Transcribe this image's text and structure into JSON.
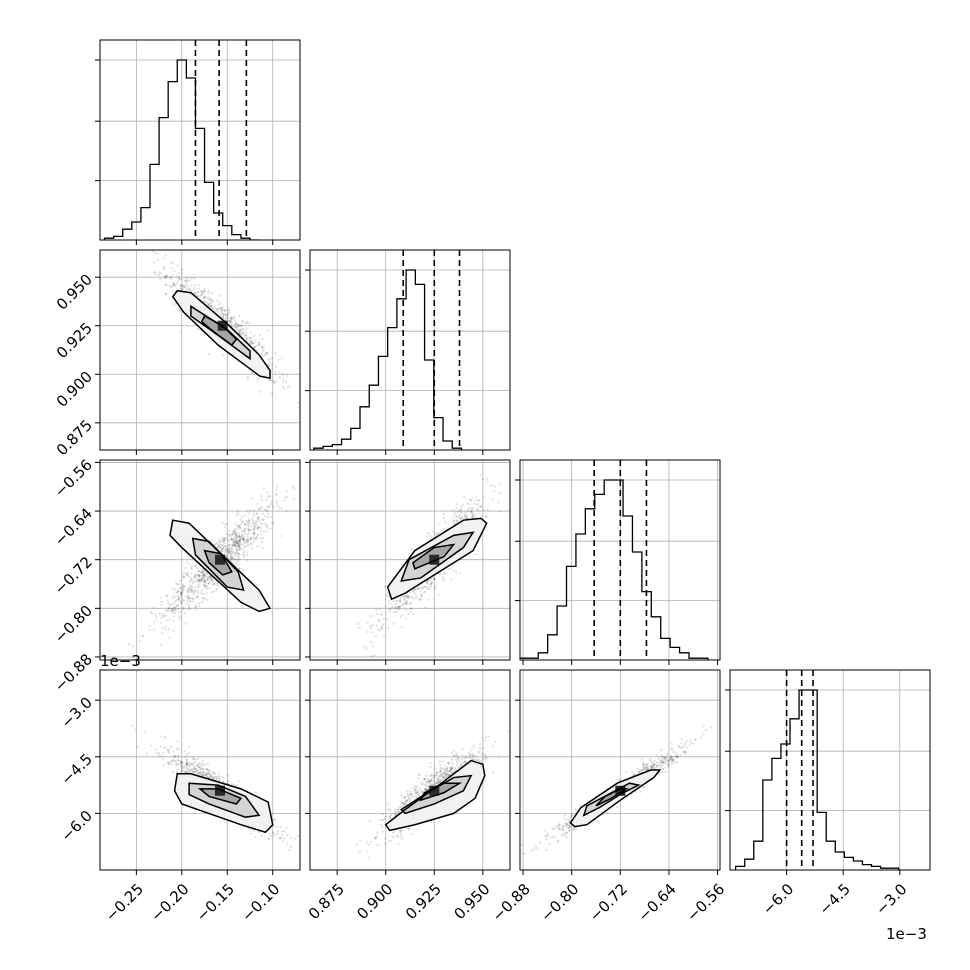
{
  "colors": {
    "line": "#000000",
    "grid": "#b0b0b0",
    "scatter": "#000000",
    "fill_levels": [
      "#f2f2f2",
      "#d4d4d4",
      "#a6a6a6",
      "#6a6a6a",
      "#2a2a2a"
    ]
  },
  "chart_data": {
    "type": "corner",
    "parameters": 4,
    "grid": true,
    "offset_labels": {
      "row4_y": "1e−3",
      "col4_x": "1e−3"
    },
    "axes_ranges": [
      [
        -0.29,
        -0.07
      ],
      [
        0.861,
        0.964
      ],
      [
        -0.885,
        -0.556
      ],
      [
        -7.5,
        -2.2
      ]
    ],
    "tick_values": [
      [
        -0.25,
        -0.2,
        -0.15,
        -0.1
      ],
      [
        0.875,
        0.9,
        0.925,
        0.95
      ],
      [
        -0.88,
        -0.8,
        -0.72,
        -0.64,
        -0.56
      ],
      [
        -6.0,
        -4.5,
        -3.0
      ]
    ],
    "tick_labels": [
      [
        "−0.25",
        "−0.20",
        "−0.15",
        "−0.10"
      ],
      [
        "0.875",
        "0.900",
        "0.925",
        "0.950"
      ],
      [
        "−0.88",
        "−0.80",
        "−0.72",
        "−0.64",
        "−0.56"
      ],
      [
        "−6.0",
        "−4.5",
        "−3.0"
      ]
    ],
    "histograms": [
      {
        "param": 0,
        "bin_start": -0.285,
        "bin_width": 0.01,
        "counts": [
          1,
          2,
          6,
          10,
          18,
          42,
          68,
          88,
          100,
          90,
          62,
          32,
          15,
          8,
          3,
          1,
          0
        ],
        "quantiles": [
          -0.185,
          -0.159,
          -0.129
        ]
      },
      {
        "param": 1,
        "bin_start": 0.863,
        "bin_width": 0.00475,
        "counts": [
          1,
          2,
          3,
          6,
          12,
          24,
          36,
          52,
          68,
          84,
          100,
          92,
          50,
          18,
          5,
          1
        ],
        "quantiles": [
          0.909,
          0.925,
          0.938
        ]
      },
      {
        "param": 2,
        "bin_start": -0.886,
        "bin_width": 0.0155,
        "counts": [
          1,
          1,
          4,
          14,
          30,
          52,
          70,
          84,
          92,
          100,
          100,
          80,
          60,
          38,
          24,
          12,
          7,
          4,
          1,
          1
        ],
        "quantiles": [
          -0.763,
          -0.72,
          -0.677
        ]
      },
      {
        "param": 3,
        "bin_start": -7.35,
        "bin_width": 0.24,
        "counts": [
          2,
          6,
          16,
          50,
          62,
          70,
          84,
          100,
          100,
          32,
          16,
          10,
          7,
          5,
          3,
          2,
          1,
          1
        ],
        "quantiles": [
          -6.0,
          -5.6,
          -5.3
        ]
      }
    ],
    "pairs": [
      {
        "x_param": 0,
        "y_param": 1,
        "center": [
          -0.155,
          0.925
        ],
        "std": [
          0.03,
          0.014
        ],
        "corr": -0.92,
        "contours": [
          [
            [
              -0.205,
              0.943
            ],
            [
              -0.19,
              0.942
            ],
            [
              -0.15,
              0.926
            ],
            [
              -0.115,
              0.91
            ],
            [
              -0.103,
              0.902
            ],
            [
              -0.103,
              0.898
            ],
            [
              -0.114,
              0.899
            ],
            [
              -0.16,
              0.915
            ],
            [
              -0.198,
              0.932
            ],
            [
              -0.21,
              0.94
            ]
          ],
          [
            [
              -0.19,
              0.935
            ],
            [
              -0.15,
              0.923
            ],
            [
              -0.125,
              0.912
            ],
            [
              -0.125,
              0.908
            ],
            [
              -0.16,
              0.92
            ],
            [
              -0.19,
              0.93
            ]
          ],
          [
            [
              -0.175,
              0.93
            ],
            [
              -0.155,
              0.925
            ],
            [
              -0.14,
              0.918
            ],
            [
              -0.145,
              0.915
            ],
            [
              -0.165,
              0.922
            ],
            [
              -0.178,
              0.927
            ]
          ]
        ]
      },
      {
        "x_param": 0,
        "y_param": 2,
        "center": [
          -0.158,
          -0.72
        ],
        "std": [
          0.032,
          0.05
        ],
        "corr": 0.92,
        "contours": [
          [
            [
              -0.21,
              -0.655
            ],
            [
              -0.192,
              -0.66
            ],
            [
              -0.115,
              -0.77
            ],
            [
              -0.103,
              -0.8
            ],
            [
              -0.115,
              -0.805
            ],
            [
              -0.135,
              -0.79
            ],
            [
              -0.2,
              -0.7
            ],
            [
              -0.213,
              -0.68
            ]
          ],
          [
            [
              -0.188,
              -0.685
            ],
            [
              -0.17,
              -0.69
            ],
            [
              -0.138,
              -0.74
            ],
            [
              -0.132,
              -0.77
            ],
            [
              -0.15,
              -0.765
            ],
            [
              -0.185,
              -0.712
            ]
          ],
          [
            [
              -0.175,
              -0.705
            ],
            [
              -0.157,
              -0.71
            ],
            [
              -0.145,
              -0.74
            ],
            [
              -0.155,
              -0.745
            ],
            [
              -0.17,
              -0.725
            ]
          ]
        ]
      },
      {
        "x_param": 0,
        "y_param": 3,
        "center": [
          -0.158,
          -5.4
        ],
        "std": [
          0.03,
          0.55
        ],
        "corr": -0.92,
        "contours": [
          [
            [
              -0.205,
              -4.95
            ],
            [
              -0.19,
              -4.95
            ],
            [
              -0.135,
              -5.35
            ],
            [
              -0.105,
              -5.7
            ],
            [
              -0.1,
              -6.3
            ],
            [
              -0.108,
              -6.5
            ],
            [
              -0.135,
              -6.3
            ],
            [
              -0.2,
              -5.75
            ],
            [
              -0.208,
              -5.4
            ]
          ],
          [
            [
              -0.192,
              -5.2
            ],
            [
              -0.16,
              -5.25
            ],
            [
              -0.13,
              -5.55
            ],
            [
              -0.115,
              -6.05
            ],
            [
              -0.13,
              -6.1
            ],
            [
              -0.17,
              -5.75
            ],
            [
              -0.192,
              -5.5
            ]
          ],
          [
            [
              -0.18,
              -5.35
            ],
            [
              -0.16,
              -5.35
            ],
            [
              -0.135,
              -5.6
            ],
            [
              -0.14,
              -5.75
            ],
            [
              -0.17,
              -5.55
            ]
          ]
        ]
      },
      {
        "x_param": 1,
        "y_param": 2,
        "center": [
          0.925,
          -0.72
        ],
        "std": [
          0.013,
          0.05
        ],
        "corr": 0.92,
        "contours": [
          [
            [
              0.903,
              -0.785
            ],
            [
              0.91,
              -0.775
            ],
            [
              0.945,
              -0.705
            ],
            [
              0.952,
              -0.66
            ],
            [
              0.949,
              -0.652
            ],
            [
              0.94,
              -0.655
            ],
            [
              0.915,
              -0.705
            ],
            [
              0.901,
              -0.765
            ]
          ],
          [
            [
              0.908,
              -0.755
            ],
            [
              0.918,
              -0.75
            ],
            [
              0.94,
              -0.7
            ],
            [
              0.945,
              -0.675
            ],
            [
              0.935,
              -0.68
            ],
            [
              0.912,
              -0.72
            ]
          ],
          [
            [
              0.915,
              -0.735
            ],
            [
              0.93,
              -0.715
            ],
            [
              0.935,
              -0.695
            ],
            [
              0.925,
              -0.7
            ],
            [
              0.914,
              -0.725
            ]
          ]
        ]
      },
      {
        "x_param": 1,
        "y_param": 3,
        "center": [
          0.925,
          -5.4
        ],
        "std": [
          0.013,
          0.55
        ],
        "corr": 0.88,
        "contours": [
          [
            [
              0.902,
              -6.45
            ],
            [
              0.915,
              -6.3
            ],
            [
              0.935,
              -6.0
            ],
            [
              0.946,
              -5.6
            ],
            [
              0.951,
              -5.0
            ],
            [
              0.95,
              -4.7
            ],
            [
              0.944,
              -4.6
            ],
            [
              0.93,
              -5.15
            ],
            [
              0.91,
              -5.9
            ],
            [
              0.9,
              -6.3
            ]
          ],
          [
            [
              0.91,
              -6.0
            ],
            [
              0.925,
              -5.75
            ],
            [
              0.94,
              -5.4
            ],
            [
              0.944,
              -5.0
            ],
            [
              0.935,
              -5.05
            ],
            [
              0.92,
              -5.5
            ],
            [
              0.908,
              -5.9
            ]
          ],
          [
            [
              0.918,
              -5.65
            ],
            [
              0.93,
              -5.45
            ],
            [
              0.938,
              -5.2
            ],
            [
              0.93,
              -5.2
            ],
            [
              0.92,
              -5.45
            ]
          ]
        ]
      },
      {
        "x_param": 2,
        "y_param": 3,
        "center": [
          -0.72,
          -5.4
        ],
        "std": [
          0.05,
          0.55
        ],
        "corr": 0.97,
        "contours": [
          [
            [
              -0.795,
              -6.35
            ],
            [
              -0.775,
              -6.3
            ],
            [
              -0.72,
              -5.65
            ],
            [
              -0.665,
              -5.05
            ],
            [
              -0.655,
              -4.85
            ],
            [
              -0.67,
              -4.85
            ],
            [
              -0.725,
              -5.2
            ],
            [
              -0.785,
              -5.85
            ],
            [
              -0.802,
              -6.25
            ]
          ],
          [
            [
              -0.78,
              -6.05
            ],
            [
              -0.755,
              -5.85
            ],
            [
              -0.715,
              -5.45
            ],
            [
              -0.69,
              -5.25
            ],
            [
              -0.705,
              -5.2
            ],
            [
              -0.74,
              -5.5
            ],
            [
              -0.775,
              -5.8
            ]
          ],
          [
            [
              -0.76,
              -5.8
            ],
            [
              -0.735,
              -5.6
            ],
            [
              -0.71,
              -5.35
            ],
            [
              -0.72,
              -5.35
            ],
            [
              -0.745,
              -5.55
            ]
          ]
        ]
      }
    ]
  }
}
